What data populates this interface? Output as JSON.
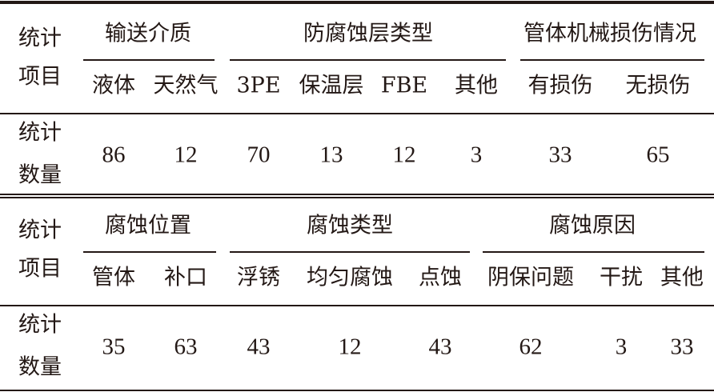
{
  "tables": [
    {
      "row_label_header": [
        "统计",
        "项目"
      ],
      "row_label_data": [
        "统计",
        "数量"
      ],
      "groups": [
        "输送介质",
        "防腐蚀层类型",
        "管体机械损伤情况"
      ],
      "subheaders": [
        "液体",
        "天然气",
        "3PE",
        "保温层",
        "FBE",
        "其他",
        "有损伤",
        "无损伤"
      ],
      "values": [
        "86",
        "12",
        "70",
        "13",
        "12",
        "3",
        "33",
        "65"
      ]
    },
    {
      "row_label_header": [
        "统计",
        "项目"
      ],
      "row_label_data": [
        "统计",
        "数量"
      ],
      "groups": [
        "腐蚀位置",
        "腐蚀类型",
        "腐蚀原因"
      ],
      "subheaders": [
        "管体",
        "补口",
        "浮锈",
        "均匀腐蚀",
        "点蚀",
        "阴保问题",
        "干扰",
        "其他"
      ],
      "values": [
        "35",
        "63",
        "43",
        "12",
        "43",
        "62",
        "3",
        "33"
      ]
    }
  ]
}
